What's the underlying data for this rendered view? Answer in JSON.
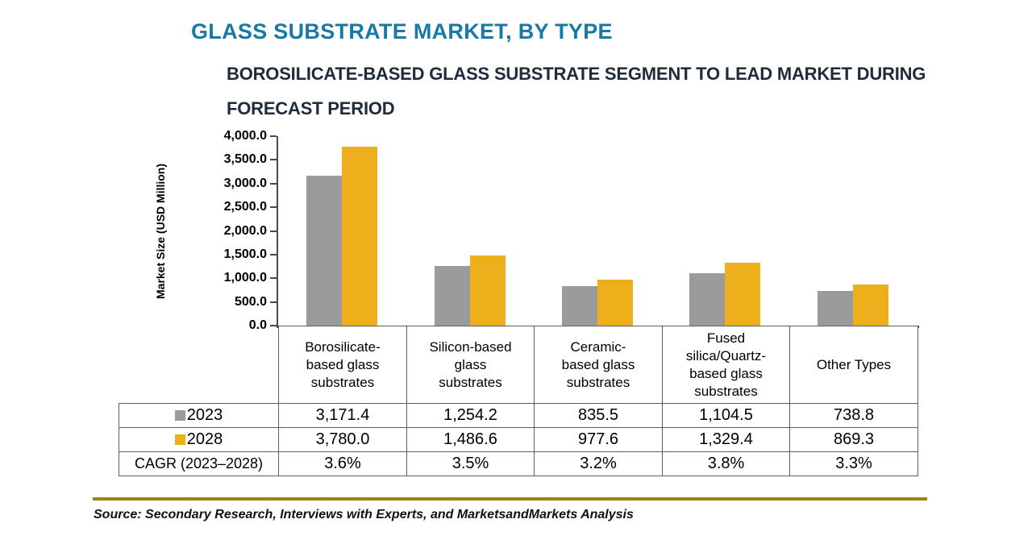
{
  "title": "GLASS SUBSTRATE MARKET, BY TYPE",
  "subtitle": "BOROSILICATE-BASED GLASS SUBSTRATE SEGMENT TO LEAD MARKET DURING\nFORECAST PERIOD",
  "source_note": "Source: Secondary Research, Interviews with Experts, and MarketsandMarkets Analysis",
  "colors": {
    "title": "#1878A6",
    "subtitle": "#1D2B3A",
    "bar_2023": "#9B9B9B",
    "bar_2028": "#EDB01C",
    "axis": "#4A4A4A",
    "table_border": "#5F5F5F",
    "divider_gold": "#A08217"
  },
  "chart_data": {
    "type": "bar",
    "title": "GLASS SUBSTRATE MARKET, BY TYPE",
    "ylabel": "Market Size (USD Million)",
    "xlabel": "",
    "ylim": [
      0,
      4000
    ],
    "ytick_step": 500,
    "ytick_labels": [
      "4,000.0",
      "3,500.0",
      "3,000.0",
      "2,500.0",
      "2,000.0",
      "1,500.0",
      "1,000.0",
      "500.0",
      "0.0"
    ],
    "grid": false,
    "legend_position": "table-left-column",
    "categories": [
      "Borosilicate-based glass substrates",
      "Silicon-based glass substrates",
      "Ceramic-based glass substrates",
      "Fused silica/Quartz-based glass substrates",
      "Other Types"
    ],
    "series": [
      {
        "name": "2023",
        "color": "#9B9B9B",
        "values": [
          3171.4,
          1254.2,
          835.5,
          1104.5,
          738.8
        ]
      },
      {
        "name": "2028",
        "color": "#EDB01C",
        "values": [
          3780.0,
          1486.6,
          977.6,
          1329.4,
          869.3
        ]
      }
    ],
    "cagr": {
      "label": "CAGR (2023–2028)",
      "values": [
        "3.6%",
        "3.5%",
        "3.2%",
        "3.8%",
        "3.3%"
      ]
    }
  },
  "table": {
    "col_headers": [
      "Borosilicate-\nbased glass\nsubstrates",
      "Silicon-based\nglass\nsubstrates",
      "Ceramic-\nbased glass\nsubstrates",
      "Fused\nsilica/Quartz-\nbased glass\nsubstrates",
      "Other Types"
    ],
    "rows": [
      {
        "label": "2023",
        "swatch": "#9B9B9B",
        "values": [
          "3,171.4",
          "1,254.2",
          "835.5",
          "1,104.5",
          "738.8"
        ]
      },
      {
        "label": "2028",
        "swatch": "#EDB01C",
        "values": [
          "3,780.0",
          "1,486.6",
          "977.6",
          "1,329.4",
          "869.3"
        ]
      },
      {
        "label": "CAGR (2023–2028)",
        "swatch": null,
        "values": [
          "3.6%",
          "3.5%",
          "3.2%",
          "3.8%",
          "3.3%"
        ]
      }
    ]
  }
}
